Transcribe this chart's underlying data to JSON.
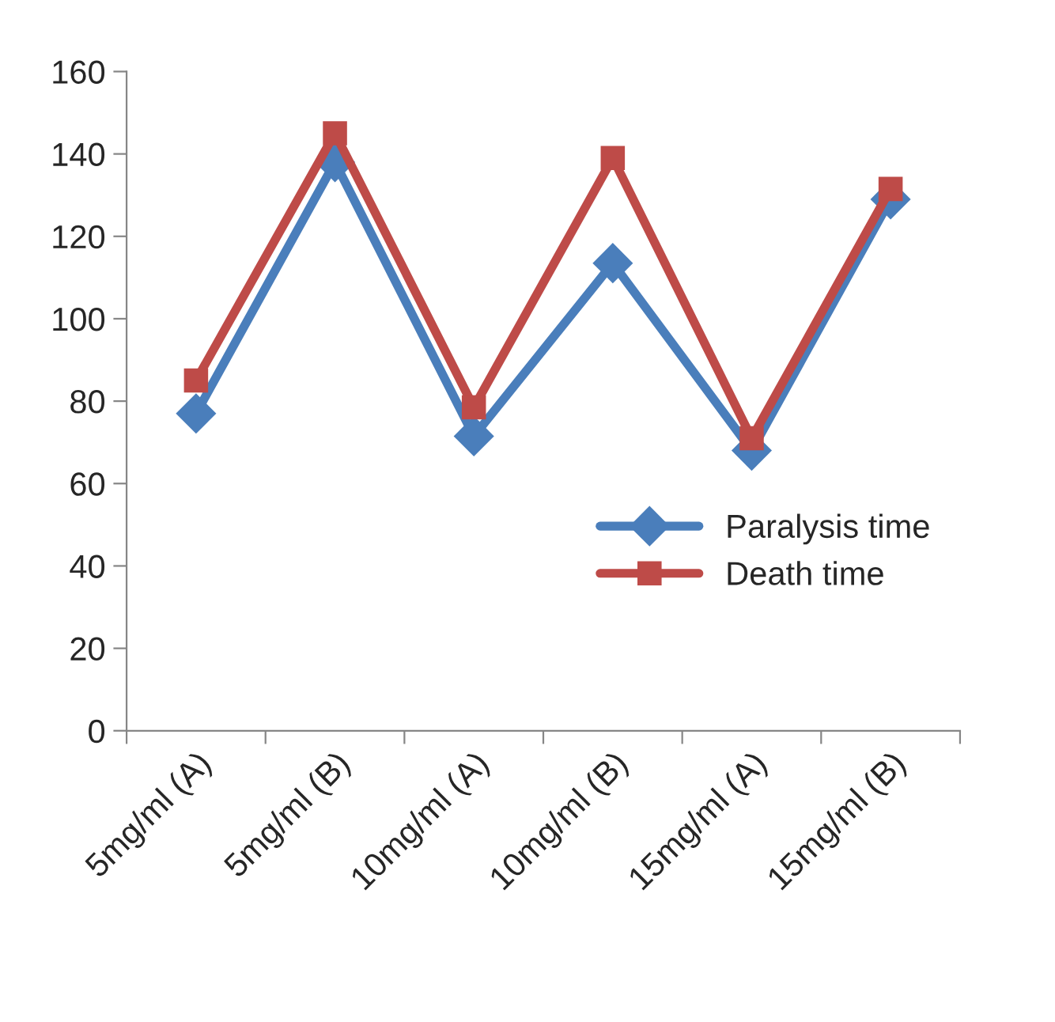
{
  "chart_data": {
    "type": "line",
    "categories": [
      "5mg/ml (A)",
      "5mg/ml (B)",
      "10mg/ml (A)",
      "10mg/ml (B)",
      "15mg/ml (A)",
      "15mg/ml (B)"
    ],
    "series": [
      {
        "name": "Paralysis time",
        "color": "#4a7ebb",
        "marker": "diamond",
        "values": [
          77,
          138,
          71.5,
          113.5,
          68,
          129
        ]
      },
      {
        "name": "Death time",
        "color": "#be4b48",
        "marker": "square",
        "values": [
          85,
          145,
          78.5,
          139,
          71,
          131.5
        ]
      }
    ],
    "ylim": [
      0,
      160
    ],
    "yticks": [
      0,
      20,
      40,
      60,
      80,
      100,
      120,
      140,
      160
    ],
    "grid": false,
    "legend": "right"
  }
}
